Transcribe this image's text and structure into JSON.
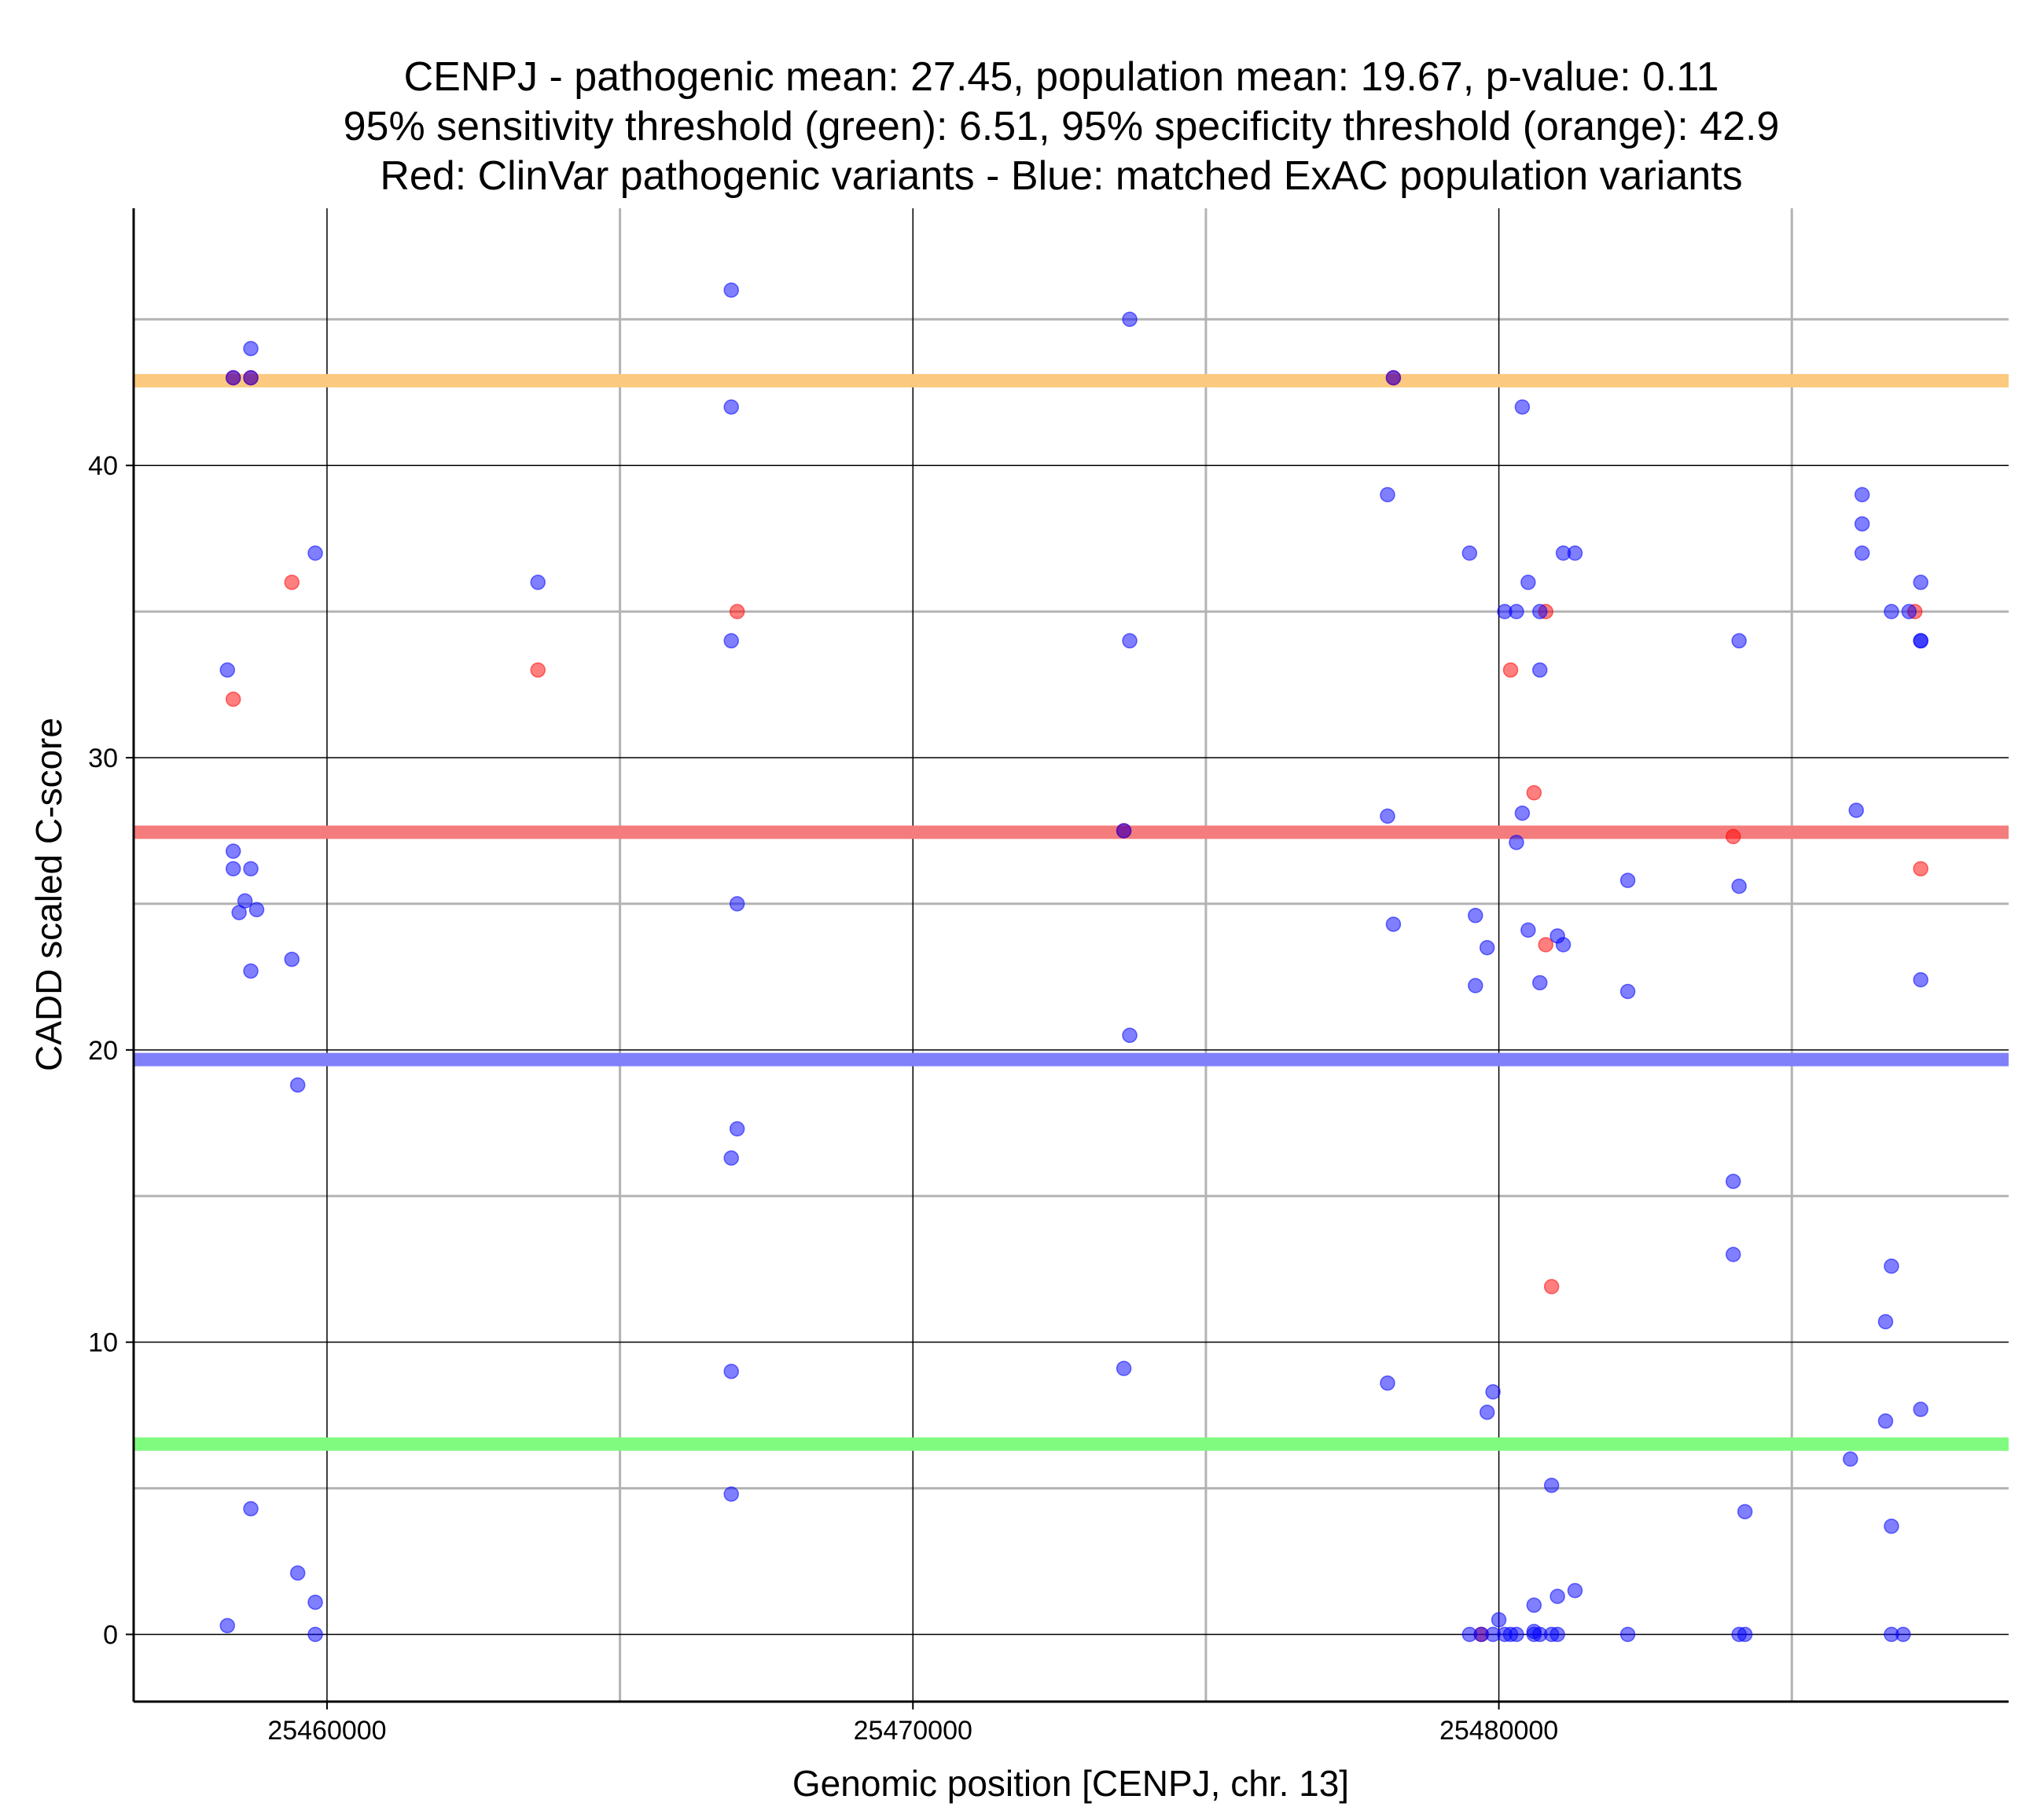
{
  "chart_data": {
    "type": "scatter",
    "title_lines": [
      "CENPJ - pathogenic mean: 27.45, population mean: 19.67, p-value: 0.11",
      "95% sensitivity threshold (green): 6.51, 95% specificity threshold (orange): 42.9",
      "Red: ClinVar pathogenic variants - Blue: matched ExAC population variants"
    ],
    "xlabel": "Genomic position [CENPJ, chr. 13]",
    "ylabel": "CADD scaled C-score",
    "xlim": [
      25456700,
      25488700
    ],
    "ylim": [
      -2.3,
      48.8
    ],
    "x_ticks": [
      25460000,
      25470000,
      25480000
    ],
    "x_tick_labels": [
      "25460000",
      "25470000",
      "25480000"
    ],
    "x_minor_gridlines": [
      25465000,
      25475000,
      25485000
    ],
    "y_ticks": [
      0,
      10,
      20,
      30,
      40
    ],
    "y_tick_labels": [
      "0",
      "10",
      "20",
      "30",
      "40"
    ],
    "y_minor_gridlines": [
      5,
      15,
      25,
      35,
      45
    ],
    "reference_lines": [
      {
        "name": "specificity threshold",
        "value": 42.9,
        "color": "#fbc97f"
      },
      {
        "name": "pathogenic mean",
        "value": 27.45,
        "color": "#f47c7c"
      },
      {
        "name": "population mean",
        "value": 19.67,
        "color": "#8080fb"
      },
      {
        "name": "sensitivity threshold",
        "value": 6.51,
        "color": "#80fb80"
      }
    ],
    "series": [
      {
        "name": "ClinVar pathogenic variants",
        "color": "#ff0000",
        "points": [
          [
            25458400,
            43.0
          ],
          [
            25458700,
            43.0
          ],
          [
            25458400,
            32.0
          ],
          [
            25459400,
            36.0
          ],
          [
            25463600,
            33.0
          ],
          [
            25467000,
            35.0
          ],
          [
            25473600,
            27.5
          ],
          [
            25478200,
            43.0
          ],
          [
            25479700,
            0.0
          ],
          [
            25480200,
            33.0
          ],
          [
            25480800,
            35.0
          ],
          [
            25480600,
            28.8
          ],
          [
            25480800,
            23.6
          ],
          [
            25480900,
            11.9
          ],
          [
            25484000,
            27.3
          ],
          [
            25487100,
            35.0
          ],
          [
            25487200,
            26.2
          ]
        ]
      },
      {
        "name": "matched ExAC population variants",
        "color": "#0000ff",
        "points": [
          [
            25458300,
            33.0
          ],
          [
            25458400,
            43.0
          ],
          [
            25458700,
            44.0
          ],
          [
            25458700,
            43.0
          ],
          [
            25458400,
            26.8
          ],
          [
            25458400,
            26.2
          ],
          [
            25458700,
            26.2
          ],
          [
            25458600,
            25.1
          ],
          [
            25458500,
            24.7
          ],
          [
            25458800,
            24.8
          ],
          [
            25458700,
            22.7
          ],
          [
            25459400,
            23.1
          ],
          [
            25459500,
            18.8
          ],
          [
            25459800,
            37.0
          ],
          [
            25458700,
            4.3
          ],
          [
            25458300,
            0.3
          ],
          [
            25459500,
            2.1
          ],
          [
            25459800,
            1.1
          ],
          [
            25459800,
            0.0
          ],
          [
            25463600,
            36.0
          ],
          [
            25466900,
            46.0
          ],
          [
            25466900,
            42.0
          ],
          [
            25466900,
            34.0
          ],
          [
            25467000,
            25.0
          ],
          [
            25467000,
            17.3
          ],
          [
            25466900,
            16.3
          ],
          [
            25466900,
            9.0
          ],
          [
            25466900,
            4.8
          ],
          [
            25473700,
            45.0
          ],
          [
            25473700,
            34.0
          ],
          [
            25473600,
            27.5
          ],
          [
            25473700,
            20.5
          ],
          [
            25473600,
            9.1
          ],
          [
            25478200,
            43.0
          ],
          [
            25478100,
            39.0
          ],
          [
            25478100,
            28.0
          ],
          [
            25478200,
            24.3
          ],
          [
            25478100,
            8.6
          ],
          [
            25479500,
            37.0
          ],
          [
            25479600,
            24.6
          ],
          [
            25479600,
            22.2
          ],
          [
            25479800,
            23.5
          ],
          [
            25479800,
            7.6
          ],
          [
            25479900,
            8.3
          ],
          [
            25480400,
            42.0
          ],
          [
            25480500,
            36.0
          ],
          [
            25480100,
            35.0
          ],
          [
            25480300,
            35.0
          ],
          [
            25480700,
            35.0
          ],
          [
            25480700,
            33.0
          ],
          [
            25480400,
            28.1
          ],
          [
            25480300,
            27.1
          ],
          [
            25480500,
            24.1
          ],
          [
            25480700,
            22.3
          ],
          [
            25481000,
            23.9
          ],
          [
            25481100,
            23.6
          ],
          [
            25481100,
            37.0
          ],
          [
            25481300,
            37.0
          ],
          [
            25482200,
            25.8
          ],
          [
            25482200,
            22.0
          ],
          [
            25480900,
            5.1
          ],
          [
            25481000,
            1.3
          ],
          [
            25481300,
            1.5
          ],
          [
            25480600,
            1.0
          ],
          [
            25480000,
            0.5
          ],
          [
            25479500,
            0.0
          ],
          [
            25479700,
            0.0
          ],
          [
            25479900,
            0.0
          ],
          [
            25480100,
            0.0
          ],
          [
            25480200,
            0.0
          ],
          [
            25480300,
            0.0
          ],
          [
            25480600,
            0.0
          ],
          [
            25480600,
            0.1
          ],
          [
            25480700,
            0.0
          ],
          [
            25480900,
            0.0
          ],
          [
            25481000,
            0.0
          ],
          [
            25482200,
            0.0
          ],
          [
            25484000,
            15.5
          ],
          [
            25484000,
            13.0
          ],
          [
            25484100,
            34.0
          ],
          [
            25484100,
            25.6
          ],
          [
            25484200,
            4.2
          ],
          [
            25484100,
            0.0
          ],
          [
            25484200,
            0.0
          ],
          [
            25486200,
            39.0
          ],
          [
            25486200,
            38.0
          ],
          [
            25486200,
            37.0
          ],
          [
            25486100,
            28.2
          ],
          [
            25486000,
            6.0
          ],
          [
            25486700,
            35.0
          ],
          [
            25487000,
            35.0
          ],
          [
            25487200,
            36.0
          ],
          [
            25487200,
            34.0
          ],
          [
            25487200,
            34.0
          ],
          [
            25487200,
            22.4
          ],
          [
            25486700,
            12.6
          ],
          [
            25486600,
            10.7
          ],
          [
            25486600,
            7.3
          ],
          [
            25487200,
            7.7
          ],
          [
            25486700,
            3.7
          ],
          [
            25486700,
            0.0
          ],
          [
            25486900,
            0.0
          ]
        ]
      }
    ]
  }
}
